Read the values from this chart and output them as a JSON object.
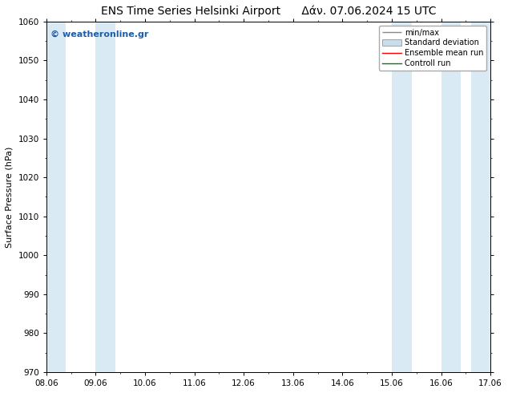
{
  "title_left": "ENS Time Series Helsinki Airport",
  "title_right": "Δάν. 07.06.2024 15 UTC",
  "ylabel": "Surface Pressure (hPa)",
  "ylim": [
    970,
    1060
  ],
  "yticks": [
    970,
    980,
    990,
    1000,
    1010,
    1020,
    1030,
    1040,
    1050,
    1060
  ],
  "xtick_labels": [
    "08.06",
    "09.06",
    "10.06",
    "11.06",
    "12.06",
    "13.06",
    "14.06",
    "15.06",
    "16.06",
    "17.06"
  ],
  "xtick_positions": [
    0,
    1,
    2,
    3,
    4,
    5,
    6,
    7,
    8,
    9
  ],
  "xlim": [
    0,
    9
  ],
  "shaded_bands": [
    {
      "xmin": 0.0,
      "xmax": 0.4,
      "color": "#daeaf5"
    },
    {
      "xmin": 1.0,
      "xmax": 1.4,
      "color": "#daeaf5"
    },
    {
      "xmin": 7.0,
      "xmax": 7.4,
      "color": "#daeaf5"
    },
    {
      "xmin": 8.0,
      "xmax": 8.4,
      "color": "#daeaf5"
    },
    {
      "xmin": 8.6,
      "xmax": 9.0,
      "color": "#daeaf5"
    }
  ],
  "watermark": "© weatheronline.gr",
  "watermark_color": "#1e5ea8",
  "background_color": "#ffffff",
  "plot_bg_color": "#ffffff",
  "legend_items": [
    {
      "label": "min/max",
      "color": "#aaaaaa",
      "type": "errorbar"
    },
    {
      "label": "Standard deviation",
      "color": "#c8dcea",
      "type": "band"
    },
    {
      "label": "Ensemble mean run",
      "color": "red",
      "type": "line"
    },
    {
      "label": "Controll run",
      "color": "green",
      "type": "line"
    }
  ],
  "title_fontsize": 10,
  "axis_label_fontsize": 8,
  "tick_fontsize": 7.5,
  "legend_fontsize": 7,
  "watermark_fontsize": 8,
  "fig_width": 6.34,
  "fig_height": 4.9,
  "dpi": 100
}
